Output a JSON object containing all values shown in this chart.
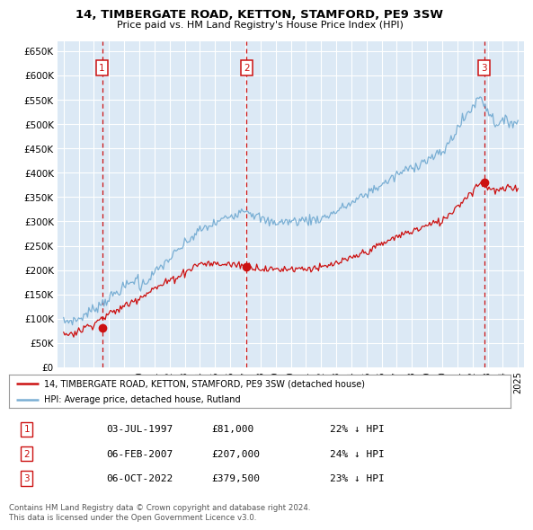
{
  "title": "14, TIMBERGATE ROAD, KETTON, STAMFORD, PE9 3SW",
  "subtitle": "Price paid vs. HM Land Registry's House Price Index (HPI)",
  "ylim": [
    0,
    670000
  ],
  "yticks": [
    0,
    50000,
    100000,
    150000,
    200000,
    250000,
    300000,
    350000,
    400000,
    450000,
    500000,
    550000,
    600000,
    650000
  ],
  "ytick_labels": [
    "£0",
    "£50K",
    "£100K",
    "£150K",
    "£200K",
    "£250K",
    "£300K",
    "£350K",
    "£400K",
    "£450K",
    "£500K",
    "£550K",
    "£600K",
    "£650K"
  ],
  "plot_bg_color": "#dce9f5",
  "legend_label_red": "14, TIMBERGATE ROAD, KETTON, STAMFORD, PE9 3SW (detached house)",
  "legend_label_blue": "HPI: Average price, detached house, Rutland",
  "red_color": "#cc1111",
  "blue_color": "#7aafd4",
  "sale_points": [
    {
      "label": "1",
      "date_num": 1997.54,
      "price": 81000,
      "date_str": "03-JUL-1997",
      "pct": "22% ↓ HPI"
    },
    {
      "label": "2",
      "date_num": 2007.09,
      "price": 207000,
      "date_str": "06-FEB-2007",
      "pct": "24% ↓ HPI"
    },
    {
      "label": "3",
      "date_num": 2022.76,
      "price": 379500,
      "date_str": "06-OCT-2022",
      "pct": "23% ↓ HPI"
    }
  ],
  "vline_color": "#cc1111",
  "footer_text": "Contains HM Land Registry data © Crown copyright and database right 2024.\nThis data is licensed under the Open Government Licence v3.0.",
  "xtick_years": [
    1995,
    1996,
    1997,
    1998,
    1999,
    2000,
    2001,
    2002,
    2003,
    2004,
    2005,
    2006,
    2007,
    2008,
    2009,
    2010,
    2011,
    2012,
    2013,
    2014,
    2015,
    2016,
    2017,
    2018,
    2019,
    2020,
    2021,
    2022,
    2023,
    2024,
    2025
  ],
  "xlim": [
    1994.6,
    2025.4
  ]
}
